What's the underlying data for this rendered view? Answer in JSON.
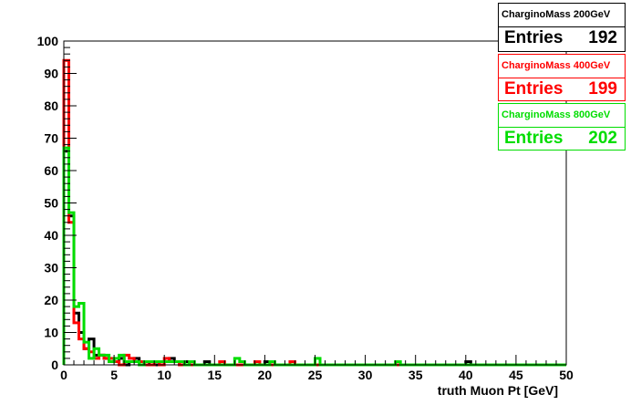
{
  "chart_data": {
    "type": "histogram-step",
    "xlabel": "truth Muon Pt [GeV]",
    "ylabel": "",
    "xlim": [
      0,
      50
    ],
    "ylim": [
      0,
      100
    ],
    "x_ticks": [
      "0",
      "5",
      "10",
      "15",
      "20",
      "25",
      "30",
      "35",
      "40",
      "45",
      "50"
    ],
    "y_ticks": [
      "0",
      "10",
      "20",
      "30",
      "40",
      "50",
      "60",
      "70",
      "80",
      "90",
      "100"
    ],
    "bin_width": 0.5,
    "series": [
      {
        "name": "CharginoMass 200GeV",
        "color": "#000000",
        "entries_label": "Entries",
        "entries": "192",
        "values": [
          66,
          46,
          16,
          10,
          5,
          8,
          3,
          3,
          2,
          1,
          1,
          2,
          0,
          1,
          2,
          1,
          1,
          0,
          0,
          1,
          1,
          2,
          1,
          0,
          1,
          0,
          0,
          0,
          1,
          0,
          0,
          0,
          0,
          0,
          0,
          0,
          0,
          0,
          0,
          0,
          1,
          0,
          0,
          0,
          0,
          0,
          0,
          0,
          0,
          0,
          0,
          0,
          0,
          0,
          0,
          0,
          0,
          0,
          0,
          0,
          0,
          0,
          0,
          0,
          0,
          0,
          0,
          0,
          0,
          0,
          0,
          0,
          0,
          0,
          0,
          0,
          0,
          0,
          0,
          0,
          1,
          0,
          0,
          0,
          0,
          0,
          0,
          0,
          0,
          0,
          0,
          0,
          0,
          0,
          0,
          0,
          0,
          0,
          0,
          0
        ]
      },
      {
        "name": "CharginoMass 400GeV",
        "color": "#ff0000",
        "entries_label": "Entries",
        "entries": "199",
        "values": [
          94,
          44,
          13,
          8,
          5,
          4,
          2,
          3,
          2,
          2,
          1,
          0,
          3,
          2,
          1,
          1,
          0,
          0,
          1,
          0,
          2,
          1,
          1,
          0,
          0,
          0,
          0,
          0,
          0,
          0,
          0,
          1,
          0,
          0,
          0,
          0,
          0,
          0,
          1,
          0,
          0,
          0,
          0,
          0,
          0,
          1,
          0,
          0,
          0,
          0,
          0,
          0,
          0,
          0,
          0,
          0,
          0,
          0,
          0,
          0,
          0,
          0,
          0,
          0,
          0,
          0,
          0,
          0,
          0,
          0,
          0,
          0,
          0,
          0,
          0,
          0,
          0,
          0,
          0,
          0,
          0,
          0,
          0,
          0,
          0,
          0,
          0,
          0,
          0,
          0,
          0,
          0,
          0,
          0,
          0,
          0,
          0,
          0,
          0,
          0
        ]
      },
      {
        "name": "CharginoMass 800GeV",
        "color": "#00dd00",
        "entries_label": "Entries",
        "entries": "202",
        "values": [
          67,
          47,
          18,
          19,
          7,
          2,
          5,
          3,
          3,
          1,
          2,
          3,
          1,
          1,
          1,
          0,
          1,
          1,
          1,
          1,
          1,
          1,
          1,
          1,
          0,
          1,
          0,
          0,
          0,
          0,
          0,
          0,
          0,
          0,
          2,
          1,
          0,
          0,
          0,
          0,
          0,
          1,
          0,
          0,
          0,
          0,
          0,
          0,
          0,
          0,
          2,
          0,
          0,
          0,
          0,
          0,
          0,
          0,
          0,
          0,
          0,
          0,
          0,
          0,
          0,
          0,
          1,
          0,
          0,
          0,
          0,
          0,
          0,
          0,
          0,
          0,
          0,
          0,
          0,
          0,
          0,
          0,
          0,
          0,
          0,
          0,
          0,
          0,
          0,
          0,
          0,
          0,
          0,
          0,
          0,
          0,
          0,
          0,
          0,
          0
        ]
      }
    ]
  }
}
